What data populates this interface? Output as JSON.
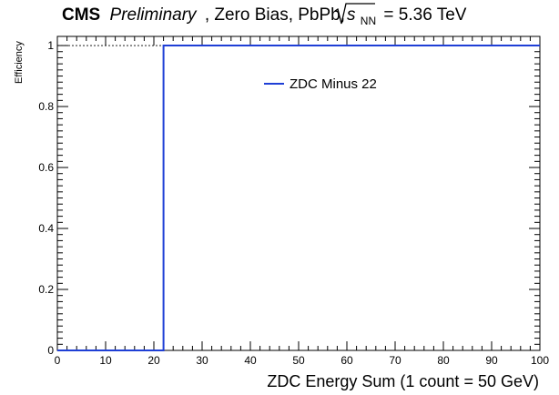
{
  "title": {
    "experiment": "CMS",
    "status": "Preliminary",
    "rest": ", Zero Bias, PbPb,",
    "energy_label": "s",
    "energy_sub": "NN",
    "energy_value": "= 5.36 TeV"
  },
  "chart_data": {
    "type": "line",
    "xlabel": "ZDC Energy Sum (1 count = 50 GeV)",
    "ylabel": "Efficiency",
    "xlim": [
      0,
      100
    ],
    "ylim": [
      0,
      1.03
    ],
    "x_ticks": [
      "0",
      "10",
      "20",
      "30",
      "40",
      "50",
      "60",
      "70",
      "80",
      "90",
      "100"
    ],
    "y_ticks": [
      "0",
      "0.2",
      "0.4",
      "0.6",
      "0.8",
      "1"
    ],
    "reference_line": {
      "y": 1,
      "style": "dotted"
    },
    "legend_placement": "upper-center",
    "series": [
      {
        "name": "ZDC Minus 22",
        "color": "#1f3fd6",
        "x": [
          0,
          22,
          22,
          100
        ],
        "y": [
          0,
          0,
          1,
          1
        ]
      }
    ]
  }
}
